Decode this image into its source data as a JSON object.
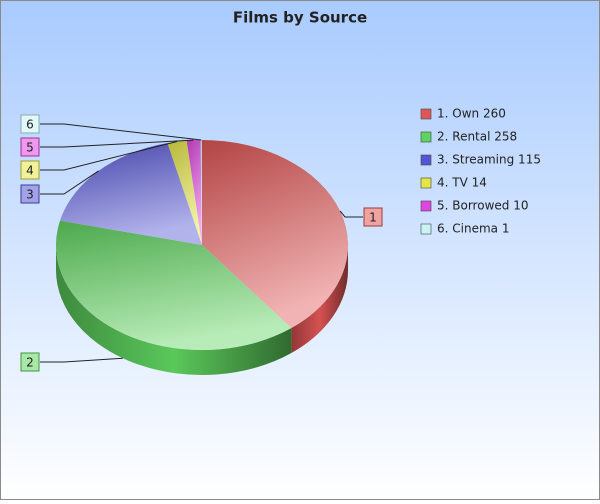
{
  "chart_data": {
    "type": "pie3d",
    "title": "Films by Source",
    "labels": [
      "1. Own 260",
      "2. Rental 258",
      "3. Streaming 115",
      "4. TV 14",
      "5. Borrowed 10",
      "6. Cinema 1"
    ],
    "values": [
      260,
      258,
      115,
      14,
      10,
      1
    ],
    "callouts": [
      "1",
      "2",
      "3",
      "4",
      "5",
      "6"
    ],
    "colors": [
      "#e05555",
      "#5fd35f",
      "#5555d5",
      "#e5e545",
      "#e045e0",
      "#c8f4f4"
    ]
  }
}
